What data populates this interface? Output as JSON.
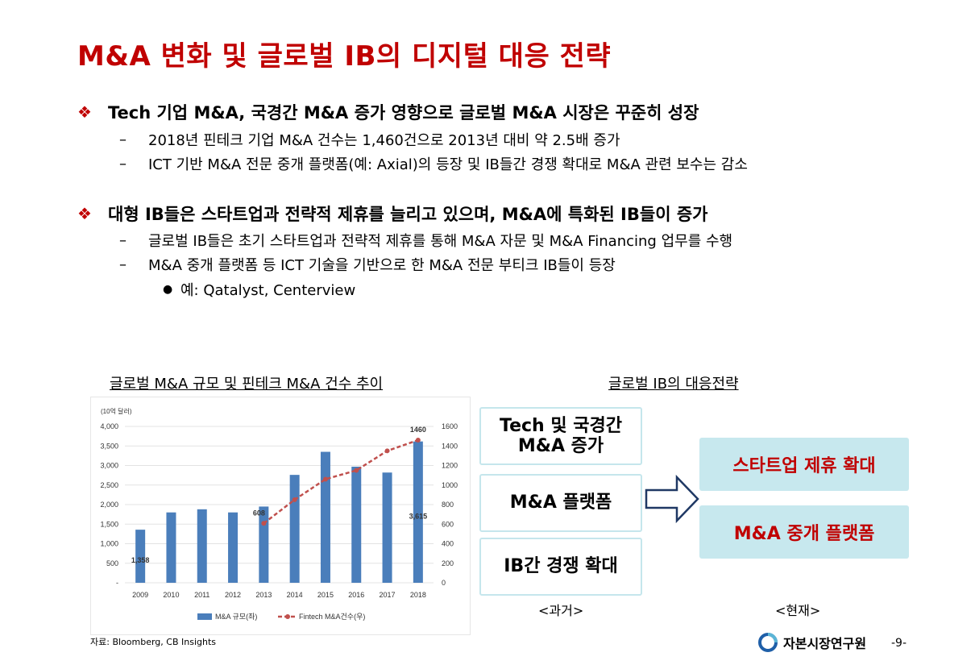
{
  "title": "M&A 변화 및 글로벌 IB의 디지털 대응 전략",
  "sections": [
    {
      "heading": "Tech 기업 M&A, 국경간 M&A 증가 영향으로 글로벌 M&A 시장은 꾸준히 성장",
      "items": [
        "2018년 핀테크 기업 M&A 건수는 1,460건으로 2013년 대비 약 2.5배 증가",
        "ICT 기반 M&A 전문 중개 플랫폼(예: Axial)의 등장 및 IB들간 경쟁 확대로 M&A 관련 보수는 감소"
      ]
    },
    {
      "heading": "대형 IB들은 스타트업과 전략적 제휴를 늘리고 있으며, M&A에 특화된 IB들이 증가",
      "items": [
        "글로벌 IB들은 초기 스타트업과 전략적 제휴를 통해 M&A 자문 및 M&A Financing 업무를 수행",
        "M&A 중개 플랫폼 등 ICT 기술을 기반으로 한 M&A 전문 부티크 IB들이 등장"
      ],
      "subitem": "예: Qatalyst, Centerview"
    }
  ],
  "chart_caption": "글로벌 M&A 규모 및 핀테크 M&A 건수 추이",
  "strategy_caption": "글로벌 IB의 대응전략",
  "chart_data": {
    "type": "bar",
    "unit_label": "(10억 달러)",
    "categories": [
      "2009",
      "2010",
      "2011",
      "2012",
      "2013",
      "2014",
      "2015",
      "2016",
      "2017",
      "2018"
    ],
    "series": [
      {
        "name": "M&A 규모(좌)",
        "type": "bar",
        "axis": "left",
        "color": "#4a7ebb",
        "values": [
          1358,
          1800,
          1880,
          1800,
          1950,
          2760,
          3350,
          2970,
          2820,
          3615
        ]
      },
      {
        "name": "Fintech M&A건수(우)",
        "type": "line",
        "axis": "right",
        "color": "#c0504d",
        "values": [
          null,
          null,
          null,
          null,
          608,
          850,
          1060,
          1150,
          1350,
          1460
        ]
      }
    ],
    "ylim_left": [
      0,
      4000
    ],
    "ylim_right": [
      0,
      1600
    ],
    "left_ticks": [
      "-",
      "500",
      "1,000",
      "1,500",
      "2,000",
      "2,500",
      "3,000",
      "3,500",
      "4,000"
    ],
    "right_ticks": [
      "0",
      "200",
      "400",
      "600",
      "800",
      "1000",
      "1200",
      "1400",
      "1600"
    ],
    "data_labels": [
      {
        "text": "1,358"
      },
      {
        "text": "608"
      },
      {
        "text": "3,615"
      },
      {
        "text": "1460"
      }
    ],
    "legend_position": "bottom",
    "grid": true
  },
  "source": "자료: Bloomberg, CB Insights",
  "past_boxes": [
    "Tech 및 국경간\nM&A 증가",
    "M&A 플랫폼",
    "IB간 경쟁 확대"
  ],
  "present_boxes": [
    "스타트업 제휴 확대",
    "M&A 중개 플랫폼"
  ],
  "past_label": "<과거>",
  "present_label": "<현재>",
  "org_name": "자본시장연구원",
  "page_number": "-9-",
  "colors": {
    "accent": "#c00000",
    "box_fill": "#c7e8ee",
    "box_border": "#c5e6ec",
    "arrow": "#1f3864"
  }
}
